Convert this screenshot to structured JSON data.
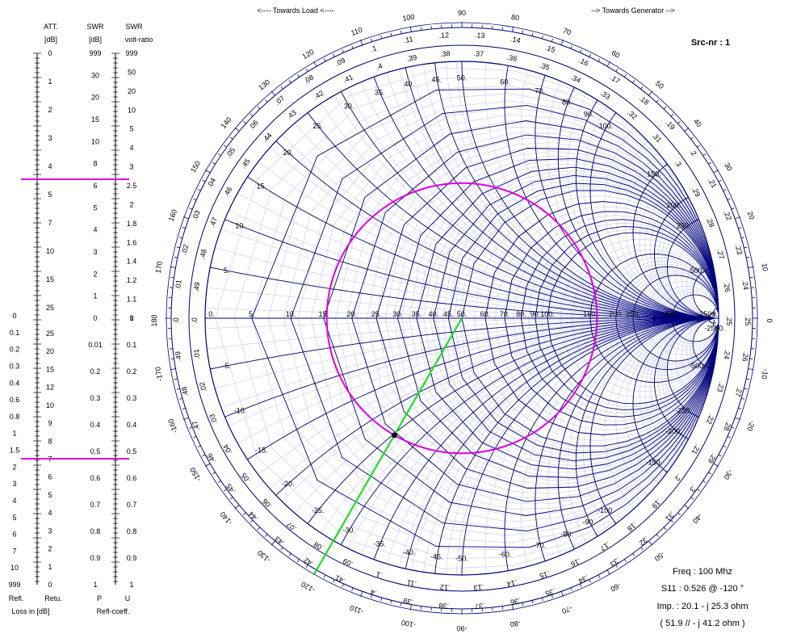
{
  "header": {
    "towards_load": "<---- Towards Load <----",
    "towards_generator": "--> Towards Generator -->",
    "source_number": "Src-nr : 1"
  },
  "scales": {
    "col_headers": [
      {
        "line1": "ATT.",
        "line2": "[dB]"
      },
      {
        "line1": "SWR",
        "line2": "[dB]"
      },
      {
        "line1": "SWR",
        "line2": "volt-ratio"
      }
    ],
    "bottom_labels": [
      "Refl.",
      "Retu.",
      "P",
      "U"
    ],
    "footer_left": "Loss in [dB]",
    "footer_right": "Refl-coeff.",
    "att_top": [
      "0",
      "1",
      "2",
      "3",
      "4",
      "5",
      "7",
      "10",
      "15",
      "25"
    ],
    "att_left_bottom": [
      "0",
      "0.1",
      "0.2",
      "0.3",
      "0.4",
      "0.6",
      "0.8",
      "1",
      "1.5",
      "2",
      "3",
      "4",
      "5",
      "6",
      "7",
      "10",
      "999"
    ],
    "att_right_bottom": [
      "25",
      "20",
      "15",
      "12",
      "10",
      "9",
      "8",
      "7",
      "6",
      "5",
      "4",
      "3",
      "2",
      "1",
      "0"
    ],
    "swr_db_top": [
      "999",
      "30",
      "20",
      "15",
      "10",
      "8",
      "6",
      "5",
      "4",
      "3",
      "2",
      "1",
      "0"
    ],
    "swr_db_bottom": [
      "0.01",
      "0.2",
      "0.3",
      "0.4",
      "0.5",
      "0.6",
      "0.7",
      "0.8",
      "0.9",
      "1"
    ],
    "swr_volt_top": [
      "999",
      "50",
      "20",
      "10",
      "5",
      "4",
      "3",
      "2.5",
      "2",
      "1.8",
      "1.6",
      "1.4",
      "1.2",
      "1.1",
      "1"
    ],
    "swr_volt_bottom": [
      "0",
      "0.1",
      "0.2",
      "0.3",
      "0.4",
      "0.5",
      "0.6",
      "0.7",
      "0.8",
      "0.9",
      "1"
    ]
  },
  "smith": {
    "resistance_labels": [
      "0.",
      "5.",
      "10.",
      "15.",
      "20.",
      "25.",
      "30.",
      "35.",
      "40.",
      "45.",
      "50.",
      "60.",
      "70.",
      "80.",
      "90.",
      "100.",
      "150.",
      "200.",
      "250.",
      "500.",
      "2500."
    ],
    "reactance_pos_labels": [
      "5.",
      "10.",
      "15.",
      "20.",
      "25.",
      "30.",
      "35.",
      "40.",
      "45.",
      "50.",
      "60.",
      "70.",
      "80.",
      "90.",
      "100.",
      "150.",
      "200.",
      "250.",
      "500."
    ],
    "reactance_neg_labels": [
      "-5.",
      "-10.",
      "-15.",
      "-20.",
      "-25.",
      "-30.",
      "-35.",
      "-40.",
      "-45.",
      "-50.",
      "-60.",
      "-70.",
      "-80.",
      "-90.",
      "-100.",
      "-150.",
      "-200.",
      "-250.",
      "-500.",
      "-2500."
    ],
    "angle_labels": [
      "180",
      "170",
      "160",
      "150",
      "140",
      "130",
      "120",
      "110",
      "100",
      "90",
      "80",
      "70",
      "60",
      "50",
      "40",
      "30",
      "20",
      "10",
      "0",
      "-10",
      "-20",
      "-30",
      "-40",
      "-50",
      "-60",
      "-70",
      "-80",
      "-90",
      "-100",
      "-110",
      "-120",
      "-130",
      "-140",
      "-150",
      "-160",
      "-170"
    ],
    "wavelength_labels": [
      ".0",
      ".01",
      ".02",
      ".03",
      ".04",
      ".05",
      ".06",
      ".07",
      ".08",
      ".09",
      ".1",
      ".11",
      ".12",
      ".13",
      ".14",
      ".15",
      ".16",
      ".17",
      ".18",
      ".19",
      ".2",
      ".21",
      ".22",
      ".23",
      ".24",
      ".25",
      ".26",
      ".27",
      ".28",
      ".29",
      ".3",
      ".31",
      ".32",
      ".33",
      ".34",
      ".35",
      ".36",
      ".37",
      ".38",
      ".39",
      ".4",
      ".41",
      ".42",
      ".43",
      ".44",
      ".45",
      ".46",
      ".47",
      ".48",
      ".49"
    ]
  },
  "readout": {
    "freq": "Freq : 100 Mhz",
    "s11": "S11 : 0.526 @ -120 °",
    "imp": "Imp. : 20.1 - j 25.3 ohm",
    "par": "( 51.9 // - j 41.2 ohm )"
  },
  "point": {
    "magnitude": 0.526,
    "angle_deg": -120,
    "z0": 50
  },
  "colors": {
    "grid_dark": "#00007a",
    "grid_light": "#c4c8e8",
    "circle": "#e000e0",
    "vector": "#22dd22",
    "marker": "#000000"
  }
}
